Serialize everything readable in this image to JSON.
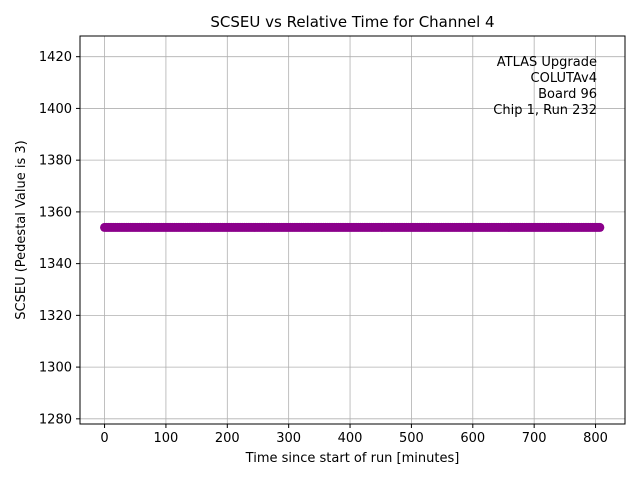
{
  "chart_data": {
    "type": "scatter",
    "title": "SCSEU vs Relative Time for Channel 4",
    "xlabel": "Time since start of run [minutes]",
    "ylabel": "SCSEU (Pedestal Value is 3)",
    "xlim": [
      -40,
      848
    ],
    "ylim": [
      1278,
      1428
    ],
    "xticks": [
      0,
      100,
      200,
      300,
      400,
      500,
      600,
      700,
      800
    ],
    "yticks": [
      1280,
      1300,
      1320,
      1340,
      1360,
      1380,
      1400,
      1420
    ],
    "grid": true,
    "marker_color": "#8b008b",
    "series": [
      {
        "x_start": 0,
        "x_end": 808,
        "x_step": 3,
        "y": 1354
      }
    ],
    "annotation": {
      "position": "top-right",
      "lines": [
        "ATLAS Upgrade",
        "COLUTAv4",
        "Board 96",
        "Chip 1, Run 232"
      ]
    }
  }
}
